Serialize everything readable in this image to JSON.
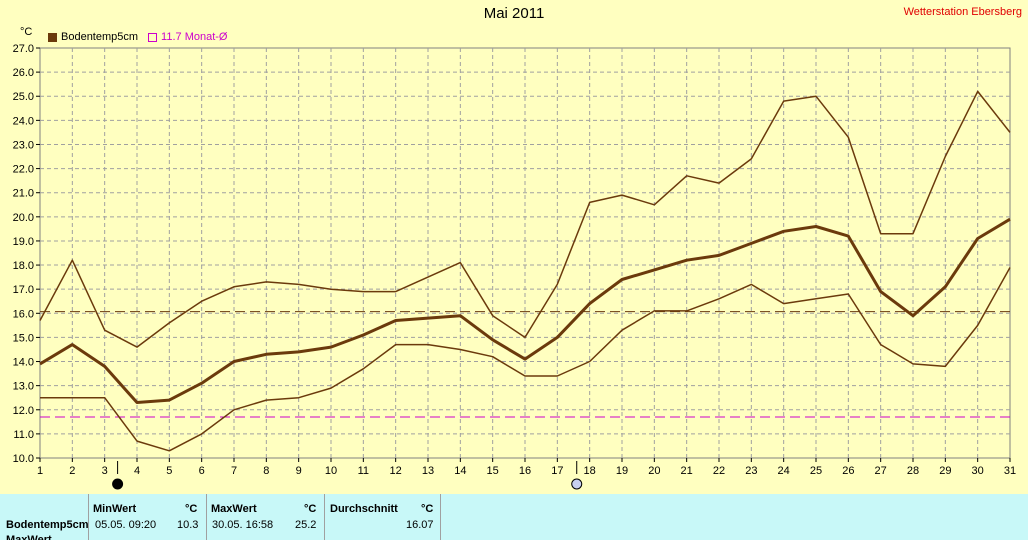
{
  "title": "Mai 2011",
  "station": "Wetterstation Ebersberg",
  "unit_label": "°C",
  "legend": {
    "series_label": "Bodentemp5cm",
    "avg_label": "11.7 Monat-Ø"
  },
  "colors": {
    "series": "#6b3a0c",
    "avg": "#cc00cc",
    "background": "#ffffc0",
    "table_bg": "#c8f8f8"
  },
  "icons": [
    "new-moon-icon",
    "full-moon-icon"
  ],
  "chart_data": {
    "type": "line",
    "title": "Mai 2011",
    "ylabel": "°C",
    "ylim": [
      10,
      27
    ],
    "yticks": [
      "10.0",
      "11.0",
      "12.0",
      "13.0",
      "14.0",
      "15.0",
      "16.0",
      "17.0",
      "18.0",
      "19.0",
      "20.0",
      "21.0",
      "22.0",
      "23.0",
      "24.0",
      "25.0",
      "26.0",
      "27.0"
    ],
    "x": [
      1,
      2,
      3,
      4,
      5,
      6,
      7,
      8,
      9,
      10,
      11,
      12,
      13,
      14,
      15,
      16,
      17,
      18,
      19,
      20,
      21,
      22,
      23,
      24,
      25,
      26,
      27,
      28,
      29,
      30,
      31
    ],
    "grid": true,
    "series": [
      {
        "name": "Bodentemp5cm",
        "role": "max",
        "values": [
          15.7,
          18.2,
          15.3,
          14.6,
          15.6,
          16.5,
          17.1,
          17.3,
          17.2,
          17.0,
          16.9,
          16.9,
          17.5,
          18.1,
          15.9,
          15.0,
          17.2,
          20.6,
          20.9,
          20.5,
          21.7,
          21.4,
          22.4,
          24.8,
          25.0,
          23.3,
          19.3,
          19.3,
          22.5,
          25.2,
          23.5
        ]
      },
      {
        "name": "Bodentemp5cm",
        "role": "mean",
        "values": [
          13.9,
          14.7,
          13.8,
          12.3,
          12.4,
          13.1,
          14.0,
          14.3,
          14.4,
          14.6,
          15.1,
          15.7,
          15.8,
          15.9,
          14.9,
          14.1,
          15.0,
          16.4,
          17.4,
          17.8,
          18.2,
          18.4,
          18.9,
          19.4,
          19.6,
          19.2,
          16.9,
          15.9,
          17.1,
          19.1,
          19.9
        ]
      },
      {
        "name": "Bodentemp5cm",
        "role": "min",
        "values": [
          12.5,
          12.5,
          12.5,
          10.7,
          10.3,
          11.0,
          12.0,
          12.4,
          12.5,
          12.9,
          13.7,
          14.7,
          14.7,
          14.5,
          14.2,
          13.4,
          13.4,
          14.0,
          15.3,
          16.1,
          16.1,
          16.6,
          17.2,
          16.4,
          16.6,
          16.8,
          14.7,
          13.9,
          13.8,
          15.5,
          17.9
        ]
      }
    ],
    "reference_lines": [
      {
        "value": 16.07,
        "color": "#6b3a0c"
      },
      {
        "value": 11.7,
        "color": "#cc00cc"
      }
    ],
    "markers": [
      {
        "x": 3.4,
        "icon": "new-moon-icon"
      },
      {
        "x": 17.6,
        "icon": "full-moon-icon"
      }
    ]
  },
  "table": {
    "row_label": "Bodentemp5cm",
    "row2_label": "MaxWert",
    "min_header": "MinWert",
    "max_header": "MaxWert",
    "avg_header": "Durchschnitt",
    "unit": "°C",
    "min_time": "05.05.  09:20",
    "min_value": "10.3",
    "max_time": "30.05.  16:58",
    "max_value": "25.2",
    "avg_value": "16.07"
  }
}
